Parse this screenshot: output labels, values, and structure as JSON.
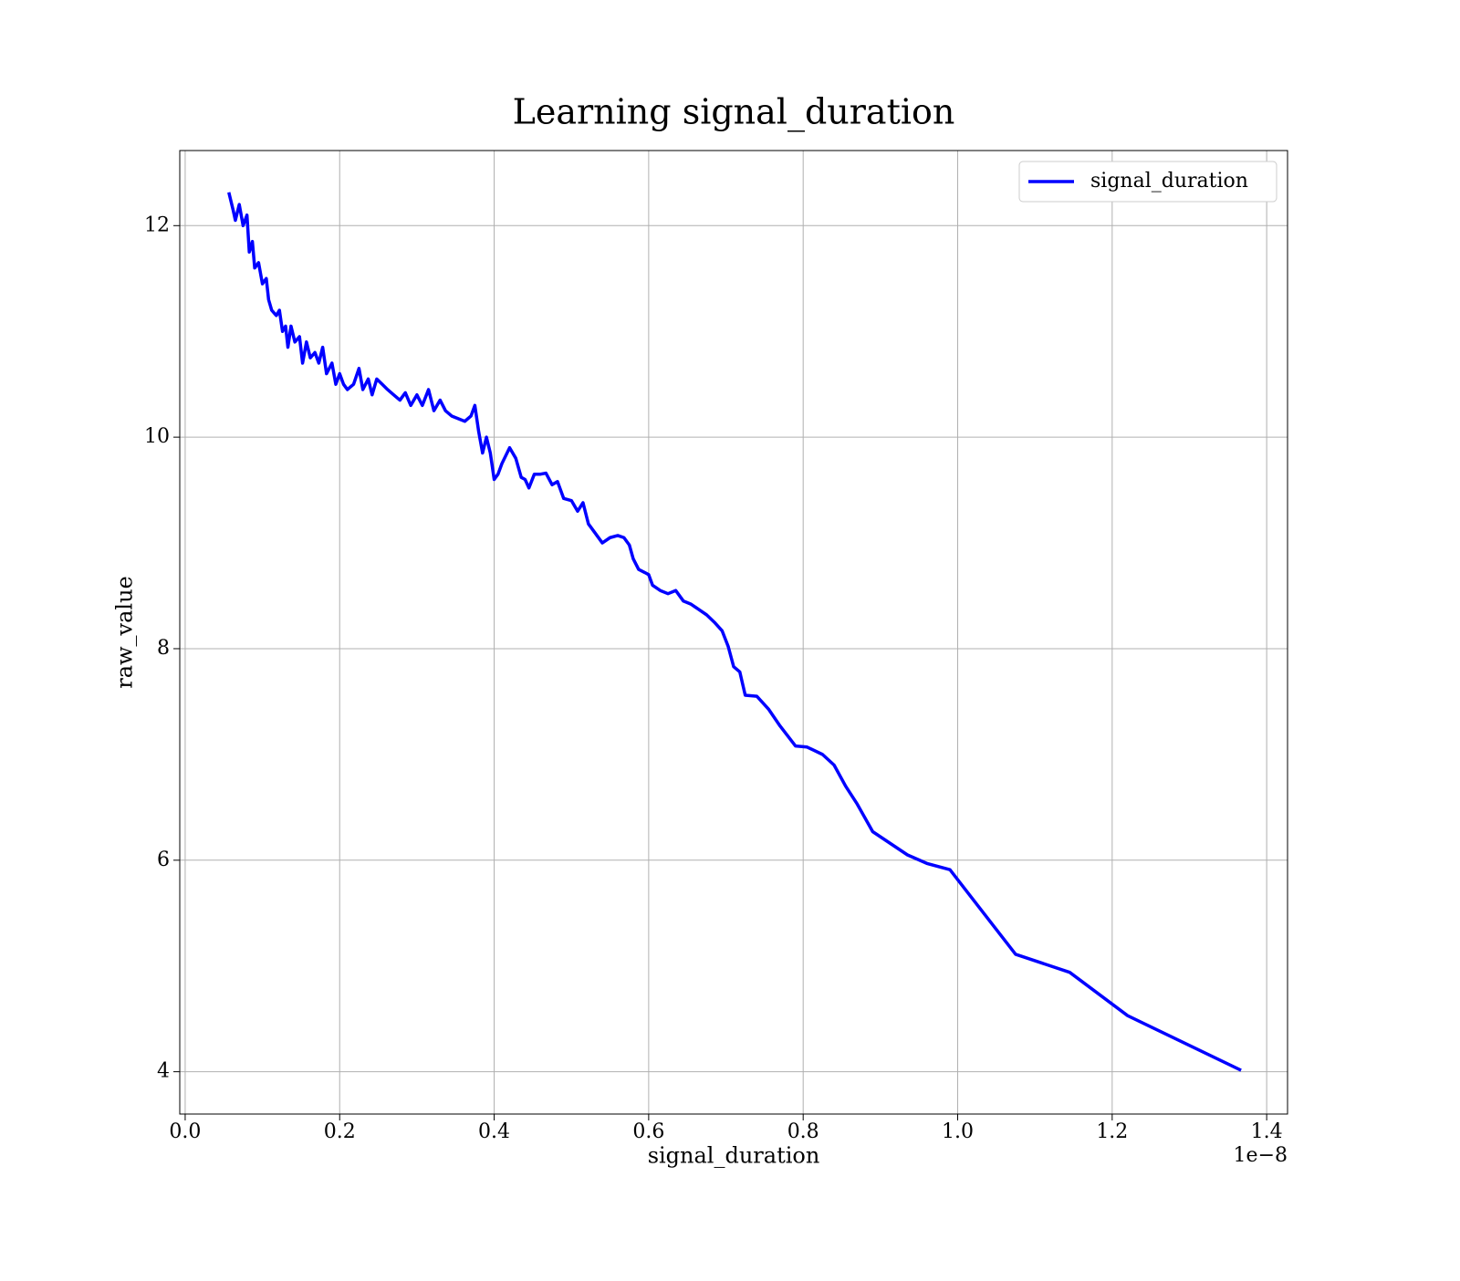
{
  "chart_data": {
    "type": "line",
    "title": "Learning signal_duration",
    "xlabel": "signal_duration",
    "ylabel": "raw_value",
    "x_offset_label": "1e−8",
    "x": [
      0.057,
      0.062,
      0.065,
      0.07,
      0.075,
      0.08,
      0.083,
      0.087,
      0.09,
      0.095,
      0.1,
      0.105,
      0.108,
      0.112,
      0.118,
      0.122,
      0.126,
      0.13,
      0.133,
      0.137,
      0.142,
      0.148,
      0.152,
      0.157,
      0.162,
      0.168,
      0.173,
      0.178,
      0.183,
      0.19,
      0.195,
      0.2,
      0.205,
      0.21,
      0.218,
      0.225,
      0.23,
      0.237,
      0.242,
      0.248,
      0.255,
      0.262,
      0.27,
      0.278,
      0.285,
      0.292,
      0.3,
      0.307,
      0.315,
      0.322,
      0.33,
      0.337,
      0.345,
      0.355,
      0.362,
      0.37,
      0.375,
      0.38,
      0.385,
      0.39,
      0.395,
      0.4,
      0.405,
      0.41,
      0.42,
      0.428,
      0.435,
      0.44,
      0.445,
      0.452,
      0.46,
      0.467,
      0.475,
      0.482,
      0.49,
      0.5,
      0.508,
      0.515,
      0.522,
      0.53,
      0.54,
      0.55,
      0.56,
      0.568,
      0.575,
      0.58,
      0.587,
      0.595,
      0.6,
      0.605,
      0.615,
      0.625,
      0.635,
      0.645,
      0.655,
      0.665,
      0.675,
      0.685,
      0.695,
      0.703,
      0.71,
      0.718,
      0.725,
      0.74,
      0.755,
      0.77,
      0.79,
      0.805,
      0.825,
      0.84,
      0.855,
      0.87,
      0.89,
      0.935,
      0.96,
      0.99,
      1.075,
      1.145,
      1.22,
      1.365
    ],
    "series": [
      {
        "name": "signal_duration",
        "color": "#0000ff",
        "values": [
          12.3,
          12.15,
          12.05,
          12.2,
          12.0,
          12.1,
          11.75,
          11.85,
          11.6,
          11.65,
          11.45,
          11.5,
          11.3,
          11.2,
          11.15,
          11.2,
          11.0,
          11.05,
          10.85,
          11.05,
          10.9,
          10.95,
          10.7,
          10.9,
          10.75,
          10.8,
          10.7,
          10.85,
          10.6,
          10.7,
          10.5,
          10.6,
          10.5,
          10.45,
          10.5,
          10.65,
          10.45,
          10.55,
          10.4,
          10.55,
          10.5,
          10.45,
          10.4,
          10.35,
          10.42,
          10.3,
          10.4,
          10.3,
          10.45,
          10.25,
          10.35,
          10.25,
          10.2,
          10.17,
          10.15,
          10.2,
          10.3,
          10.05,
          9.85,
          10.0,
          9.85,
          9.6,
          9.65,
          9.75,
          9.9,
          9.8,
          9.62,
          9.6,
          9.52,
          9.65,
          9.65,
          9.66,
          9.55,
          9.58,
          9.42,
          9.4,
          9.3,
          9.38,
          9.18,
          9.1,
          9.0,
          9.05,
          9.07,
          9.05,
          8.98,
          8.85,
          8.75,
          8.72,
          8.7,
          8.6,
          8.55,
          8.52,
          8.55,
          8.45,
          8.42,
          8.37,
          8.32,
          8.25,
          8.17,
          8.02,
          7.83,
          7.78,
          7.56,
          7.55,
          7.43,
          7.27,
          7.08,
          7.07,
          7.0,
          6.9,
          6.7,
          6.53,
          6.27,
          6.05,
          5.97,
          5.91,
          5.11,
          4.94,
          4.53,
          4.02
        ]
      }
    ],
    "xlim": [
      -0.007,
      1.427
    ],
    "ylim": [
      3.6,
      12.71
    ],
    "xticks": [
      {
        "value": 0,
        "label": "0.0"
      },
      0.2,
      0.4,
      0.6,
      0.8,
      {
        "value": 1,
        "label": "1.0"
      },
      1.2,
      1.4
    ],
    "yticks": [
      4,
      6,
      8,
      10,
      12
    ],
    "grid": true,
    "legend": "upper right"
  }
}
